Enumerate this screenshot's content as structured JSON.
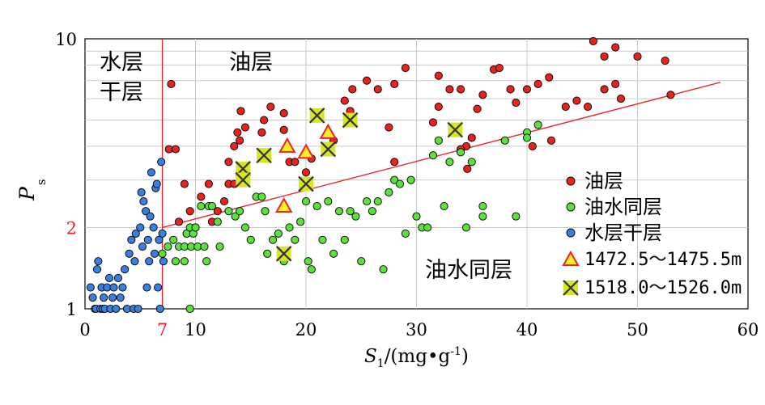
{
  "chart_data": {
    "type": "scatter",
    "x_axis": {
      "title_main": "S",
      "title_sub": "1",
      "title_unit": "/(mg•g",
      "title_exp": "-1",
      "title_end": ")",
      "range": [
        0,
        60
      ],
      "ticks": [
        0,
        10,
        20,
        30,
        40,
        50,
        60
      ],
      "tick_labels": [
        "0",
        "10",
        "20",
        "30",
        "40",
        "50",
        "60"
      ],
      "extra_tick": {
        "value": 7,
        "label": "7",
        "color": "#e8262b"
      }
    },
    "y_axis": {
      "title_main": "P",
      "title_sub": "s",
      "scale": "log",
      "range": [
        1,
        10
      ],
      "ticks": [
        1,
        10
      ],
      "tick_labels": [
        "1",
        "10"
      ],
      "extra_tick": {
        "value": 2,
        "label": "2",
        "color": "#e8262b"
      }
    },
    "grid": true,
    "region_labels": {
      "water_dry_line1": "水层",
      "water_dry_line2": "干层",
      "oil": "油层",
      "oil_water": "油水同层"
    },
    "boundary_vertical": {
      "x": 7,
      "color": "#e8262b"
    },
    "boundary_line": {
      "x": [
        7,
        57.5
      ],
      "y": [
        2.0,
        6.9
      ],
      "color": "#e8262b"
    },
    "colors": {
      "oil": "#e8231c",
      "oil_water": "#5ce03c",
      "water_dry": "#3a7fe0",
      "triangle_fill": "#ffee22",
      "triangle_stroke": "#e8232b",
      "cross_fill": "#d7e526"
    },
    "series": [
      {
        "name": "油层",
        "marker": "circle",
        "color": "#e8231c",
        "points": [
          [
            7.8,
            6.8
          ],
          [
            7.6,
            3.9
          ],
          [
            8.2,
            3.9
          ],
          [
            9.0,
            2.9
          ],
          [
            8.5,
            2.1
          ],
          [
            9.5,
            2.3
          ],
          [
            9.2,
            1.9
          ],
          [
            10.0,
            2.0
          ],
          [
            10.5,
            2.6
          ],
          [
            11.2,
            2.9
          ],
          [
            11.5,
            2.1
          ],
          [
            12.0,
            2.3
          ],
          [
            12.6,
            2.5
          ],
          [
            13.0,
            2.9
          ],
          [
            13.5,
            2.9
          ],
          [
            13.0,
            3.5
          ],
          [
            13.5,
            4.0
          ],
          [
            13.8,
            4.5
          ],
          [
            14.0,
            4.2
          ],
          [
            14.1,
            5.4
          ],
          [
            14.5,
            4.7
          ],
          [
            16.0,
            4.5
          ],
          [
            16.5,
            3.6
          ],
          [
            16.2,
            5.0
          ],
          [
            16.8,
            5.6
          ],
          [
            18.0,
            5.3
          ],
          [
            18.0,
            4.6
          ],
          [
            18.5,
            3.5
          ],
          [
            19.0,
            3.5
          ],
          [
            20.0,
            3.2
          ],
          [
            20.5,
            3.6
          ],
          [
            22.5,
            4.2
          ],
          [
            23.5,
            5.9
          ],
          [
            24.0,
            5.4
          ],
          [
            24.2,
            6.5
          ],
          [
            25.5,
            7.0
          ],
          [
            26.5,
            6.5
          ],
          [
            28.0,
            6.8
          ],
          [
            27.5,
            4.7
          ],
          [
            28.0,
            3.5
          ],
          [
            29.0,
            7.8
          ],
          [
            31.5,
            4.9
          ],
          [
            32.0,
            5.6
          ],
          [
            32.0,
            7.3
          ],
          [
            33.0,
            6.5
          ],
          [
            34.0,
            6.5
          ],
          [
            34.5,
            4.0
          ],
          [
            34.0,
            3.9
          ],
          [
            35.0,
            4.3
          ],
          [
            35.5,
            5.5
          ],
          [
            36.0,
            6.2
          ],
          [
            37.0,
            7.7
          ],
          [
            37.5,
            7.8
          ],
          [
            38.5,
            6.5
          ],
          [
            39.0,
            5.8
          ],
          [
            40.0,
            6.5
          ],
          [
            40.5,
            4.0
          ],
          [
            41.0,
            6.8
          ],
          [
            42.0,
            7.2
          ],
          [
            42.2,
            4.2
          ],
          [
            43.5,
            5.6
          ],
          [
            44.5,
            5.9
          ],
          [
            45.5,
            5.6
          ],
          [
            47.0,
            6.5
          ],
          [
            48.0,
            6.8
          ],
          [
            50.0,
            8.6
          ],
          [
            52.5,
            8.3
          ],
          [
            53.0,
            6.2
          ],
          [
            46.0,
            9.8
          ],
          [
            47.0,
            8.6
          ],
          [
            48.0,
            9.3
          ],
          [
            48.5,
            6.0
          ],
          [
            34.6,
            3.3
          ]
        ]
      },
      {
        "name": "油水同层",
        "marker": "circle",
        "color": "#5ce03c",
        "points": [
          [
            7.0,
            1.6
          ],
          [
            7.5,
            1.7
          ],
          [
            8.0,
            1.8
          ],
          [
            8.2,
            1.5
          ],
          [
            8.5,
            1.7
          ],
          [
            9.0,
            1.7
          ],
          [
            9.0,
            1.5
          ],
          [
            9.2,
            1.9
          ],
          [
            9.5,
            2.0
          ],
          [
            9.6,
            1.7
          ],
          [
            9.8,
            1.9
          ],
          [
            10.0,
            2.0
          ],
          [
            10.2,
            1.7
          ],
          [
            10.5,
            2.4
          ],
          [
            10.8,
            1.7
          ],
          [
            11.0,
            1.5
          ],
          [
            11.2,
            2.4
          ],
          [
            11.5,
            2.4
          ],
          [
            12.0,
            2.1
          ],
          [
            12.2,
            1.7
          ],
          [
            13.0,
            2.3
          ],
          [
            13.6,
            2.2
          ],
          [
            14.0,
            2.3
          ],
          [
            14.5,
            2.0
          ],
          [
            15.0,
            1.8
          ],
          [
            15.5,
            2.6
          ],
          [
            16.0,
            2.6
          ],
          [
            16.3,
            2.3
          ],
          [
            16.5,
            1.6
          ],
          [
            17.0,
            1.8
          ],
          [
            17.5,
            1.9
          ],
          [
            18.0,
            1.5
          ],
          [
            18.5,
            2.0
          ],
          [
            19.0,
            1.8
          ],
          [
            19.5,
            2.1
          ],
          [
            20.0,
            2.5
          ],
          [
            20.2,
            1.5
          ],
          [
            20.5,
            1.4
          ],
          [
            21.0,
            2.4
          ],
          [
            21.5,
            1.8
          ],
          [
            22.0,
            2.5
          ],
          [
            22.5,
            1.6
          ],
          [
            23.0,
            2.3
          ],
          [
            23.5,
            1.8
          ],
          [
            24.0,
            2.3
          ],
          [
            24.5,
            2.2
          ],
          [
            25.0,
            1.5
          ],
          [
            25.5,
            2.5
          ],
          [
            26.0,
            2.3
          ],
          [
            26.5,
            2.5
          ],
          [
            27.0,
            1.4
          ],
          [
            27.5,
            2.7
          ],
          [
            28.0,
            3.0
          ],
          [
            28.5,
            2.9
          ],
          [
            29.0,
            1.9
          ],
          [
            29.5,
            3.0
          ],
          [
            30.0,
            2.2
          ],
          [
            30.5,
            2.0
          ],
          [
            31.0,
            2.0
          ],
          [
            31.5,
            3.7
          ],
          [
            32.0,
            4.2
          ],
          [
            32.5,
            2.4
          ],
          [
            33.0,
            3.5
          ],
          [
            34.0,
            3.8
          ],
          [
            34.5,
            2.0
          ],
          [
            35.0,
            3.5
          ],
          [
            36.0,
            2.4
          ],
          [
            36.0,
            2.2
          ],
          [
            38.0,
            4.2
          ],
          [
            39.0,
            2.2
          ],
          [
            40.0,
            4.5
          ],
          [
            41.0,
            4.8
          ],
          [
            40.0,
            4.3
          ],
          [
            9.5,
            1.0
          ]
        ]
      },
      {
        "name": "水层干层",
        "marker": "circle",
        "color": "#3a7fe0",
        "points": [
          [
            0.5,
            1.2
          ],
          [
            0.7,
            1.1
          ],
          [
            0.9,
            1.0
          ],
          [
            1.0,
            1.0
          ],
          [
            1.1,
            1.4
          ],
          [
            1.2,
            1.5
          ],
          [
            1.4,
            1.0
          ],
          [
            1.5,
            1.2
          ],
          [
            1.6,
            1.0
          ],
          [
            1.7,
            1.1
          ],
          [
            1.8,
            1.0
          ],
          [
            2.0,
            1.2
          ],
          [
            2.2,
            1.3
          ],
          [
            2.3,
            1.0
          ],
          [
            2.5,
            1.1
          ],
          [
            2.6,
            1.2
          ],
          [
            2.8,
            1.0
          ],
          [
            3.0,
            1.3
          ],
          [
            3.2,
            1.1
          ],
          [
            3.4,
            1.2
          ],
          [
            3.6,
            1.4
          ],
          [
            3.8,
            1.0
          ],
          [
            4.0,
            1.6
          ],
          [
            4.2,
            1.8
          ],
          [
            4.4,
            1.0
          ],
          [
            4.5,
            1.5
          ],
          [
            4.6,
            1.9
          ],
          [
            4.8,
            1.0
          ],
          [
            5.0,
            2.0
          ],
          [
            5.1,
            2.7
          ],
          [
            5.2,
            1.7
          ],
          [
            5.3,
            2.5
          ],
          [
            5.5,
            2.3
          ],
          [
            5.6,
            1.2
          ],
          [
            5.7,
            1.8
          ],
          [
            5.8,
            1.5
          ],
          [
            5.9,
            2.2
          ],
          [
            6.0,
            3.2
          ],
          [
            6.2,
            2.0
          ],
          [
            6.3,
            1.6
          ],
          [
            6.4,
            2.8
          ],
          [
            6.5,
            2.9
          ],
          [
            6.6,
            1.2
          ],
          [
            6.7,
            1.8
          ],
          [
            6.8,
            1.0
          ],
          [
            6.9,
            3.5
          ],
          [
            7.0,
            1.9
          ],
          [
            7.1,
            1.5
          ]
        ]
      },
      {
        "name": "1472.5～1475.5m",
        "marker": "triangle",
        "color": "#ffee22",
        "points": [
          [
            18.3,
            4.0
          ],
          [
            20.0,
            3.8
          ],
          [
            22.0,
            4.5
          ],
          [
            18.0,
            2.4
          ]
        ]
      },
      {
        "name": "1518.0～1526.0m",
        "marker": "cross",
        "color": "#d7e526",
        "points": [
          [
            14.3,
            3.3
          ],
          [
            14.3,
            3.0
          ],
          [
            16.2,
            3.7
          ],
          [
            20.0,
            2.9
          ],
          [
            21.0,
            5.2
          ],
          [
            22.0,
            3.9
          ],
          [
            24.0,
            5.0
          ],
          [
            33.5,
            4.6
          ],
          [
            18.0,
            1.6
          ]
        ]
      }
    ],
    "legend": {
      "position": "right"
    }
  }
}
